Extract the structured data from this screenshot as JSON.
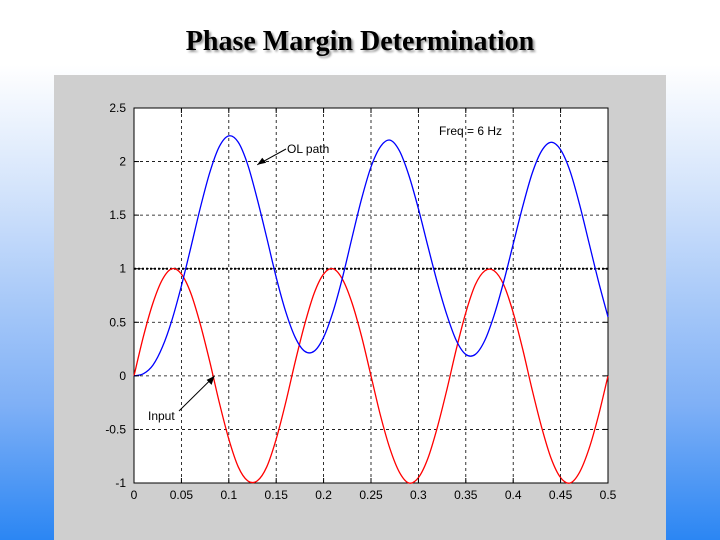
{
  "slide": {
    "title": "Phase Margin Determination"
  },
  "chart_data": {
    "type": "line",
    "title": "",
    "xlabel": "",
    "ylabel": "",
    "xlim": [
      0,
      0.5
    ],
    "ylim": [
      -1,
      2.5
    ],
    "grid": true,
    "x_ticks": [
      0,
      0.05,
      0.1,
      0.15,
      0.2,
      0.25,
      0.3,
      0.35,
      0.4,
      0.45,
      0.5
    ],
    "x_tick_labels": [
      "0",
      "0.05",
      "0.1",
      "0.15",
      "0.2",
      "0.25",
      "0.3",
      "0.35",
      "0.4",
      "0.45",
      "0.5"
    ],
    "y_ticks": [
      -1,
      -0.5,
      0,
      0.5,
      1,
      1.5,
      2,
      2.5
    ],
    "y_tick_labels": [
      "-1",
      "-0.5",
      "0",
      "0.5",
      "1",
      "1.5",
      "2",
      "2.5"
    ],
    "reference_line": {
      "y": 1,
      "style": "dotted",
      "color": "#000000"
    },
    "series": [
      {
        "color": "#ff0000",
        "x": [
          0,
          0.01,
          0.02,
          0.03,
          0.04,
          0.05,
          0.06,
          0.07,
          0.08,
          0.09,
          0.1,
          0.11,
          0.12,
          0.13,
          0.14,
          0.15,
          0.16,
          0.17,
          0.18,
          0.19,
          0.2,
          0.21,
          0.22,
          0.23,
          0.24,
          0.25,
          0.26,
          0.27,
          0.28,
          0.29,
          0.3,
          0.31,
          0.32,
          0.33,
          0.34,
          0.35,
          0.36,
          0.37,
          0.38,
          0.39,
          0.4,
          0.41,
          0.42,
          0.43,
          0.44,
          0.45,
          0.46,
          0.47,
          0.48,
          0.49,
          0.5
        ],
        "y": [
          0,
          0.37,
          0.68,
          0.9,
          1.0,
          0.95,
          0.77,
          0.48,
          0.13,
          -0.25,
          -0.59,
          -0.85,
          -0.98,
          -0.98,
          -0.85,
          -0.59,
          -0.25,
          0.13,
          0.48,
          0.77,
          0.95,
          1.0,
          0.9,
          0.68,
          0.37,
          0.0,
          -0.37,
          -0.68,
          -0.9,
          -1.0,
          -0.95,
          -0.77,
          -0.48,
          -0.13,
          0.25,
          0.59,
          0.85,
          0.98,
          0.98,
          0.85,
          0.59,
          0.25,
          -0.13,
          -0.48,
          -0.77,
          -0.95,
          -1.0,
          -0.9,
          -0.68,
          -0.37,
          0.0
        ]
      },
      {
        "color": "#0000ff",
        "x": [
          0,
          0.01,
          0.02,
          0.03,
          0.04,
          0.05,
          0.06,
          0.07,
          0.08,
          0.09,
          0.1,
          0.11,
          0.12,
          0.13,
          0.14,
          0.15,
          0.16,
          0.17,
          0.18,
          0.19,
          0.2,
          0.21,
          0.22,
          0.23,
          0.24,
          0.25,
          0.26,
          0.27,
          0.28,
          0.29,
          0.3,
          0.31,
          0.32,
          0.33,
          0.34,
          0.35,
          0.36,
          0.37,
          0.38,
          0.39,
          0.4,
          0.41,
          0.42,
          0.43,
          0.44,
          0.45,
          0.46,
          0.47,
          0.48,
          0.49,
          0.5
        ],
        "y": [
          0.0,
          0.02,
          0.1,
          0.27,
          0.52,
          0.84,
          1.2,
          1.57,
          1.9,
          2.14,
          2.24,
          2.18,
          1.97,
          1.65,
          1.29,
          0.92,
          0.6,
          0.36,
          0.23,
          0.23,
          0.36,
          0.6,
          0.92,
          1.29,
          1.65,
          1.95,
          2.14,
          2.2,
          2.1,
          1.87,
          1.56,
          1.21,
          0.87,
          0.57,
          0.33,
          0.2,
          0.2,
          0.33,
          0.57,
          0.88,
          1.23,
          1.58,
          1.89,
          2.1,
          2.18,
          2.11,
          1.91,
          1.6,
          1.24,
          0.88,
          0.55
        ]
      }
    ],
    "annotations": [
      {
        "text": "OL path",
        "arrow_to": [
          0.13,
          1.97
        ]
      },
      {
        "text": "Input",
        "arrow_to": [
          0.085,
          0.0
        ]
      },
      {
        "text": "Freq = 6 Hz"
      }
    ]
  }
}
